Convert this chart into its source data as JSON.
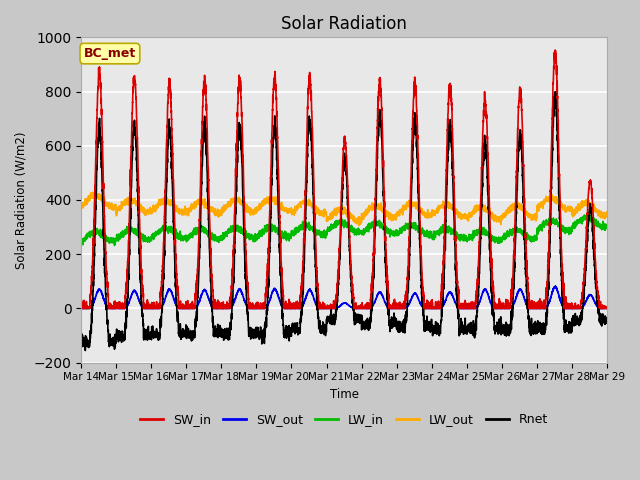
{
  "title": "Solar Radiation",
  "ylabel": "Solar Radiation (W/m2)",
  "xlabel": "Time",
  "ylim": [
    -200,
    1000
  ],
  "fig_bg_color": "#c8c8c8",
  "plot_bg_color": "#e8e8e8",
  "annotation_text": "BC_met",
  "annotation_box_color": "#ffffaa",
  "annotation_box_edge": "#bbaa00",
  "series": {
    "SW_in": {
      "color": "#dd0000",
      "lw": 1.2
    },
    "SW_out": {
      "color": "#0000ee",
      "lw": 1.2
    },
    "LW_in": {
      "color": "#00bb00",
      "lw": 1.2
    },
    "LW_out": {
      "color": "#ffaa00",
      "lw": 1.2
    },
    "Rnet": {
      "color": "#000000",
      "lw": 1.2
    }
  },
  "legend_entries": [
    "SW_in",
    "SW_out",
    "LW_in",
    "LW_out",
    "Rnet"
  ],
  "legend_colors": [
    "#dd0000",
    "#0000ee",
    "#00bb00",
    "#ffaa00",
    "#000000"
  ],
  "x_tick_labels": [
    "Mar 14",
    "Mar 15",
    "Mar 16",
    "Mar 17",
    "Mar 18",
    "Mar 19",
    "Mar 20",
    "Mar 21",
    "Mar 22",
    "Mar 23",
    "Mar 24",
    "Mar 25",
    "Mar 26",
    "Mar 27",
    "Mar 28",
    "Mar 29"
  ],
  "num_days": 15,
  "pts_per_day": 288
}
